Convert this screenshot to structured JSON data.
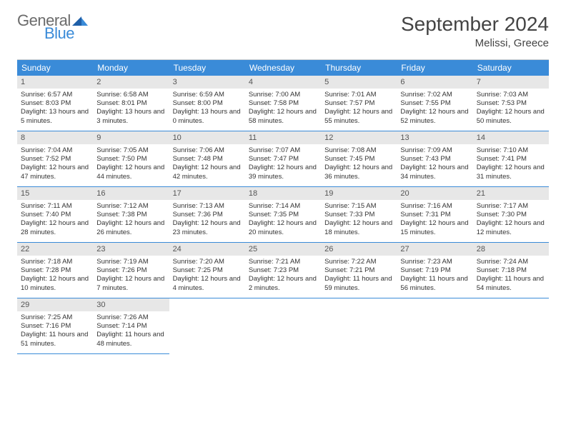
{
  "logo": {
    "general": "General",
    "blue": "Blue"
  },
  "title": "September 2024",
  "subtitle": "Melissi, Greece",
  "colors": {
    "header_bg": "#3a8bd8",
    "header_text": "#ffffff",
    "daynum_bg": "#e7e7e7",
    "border": "#3a8bd8",
    "text": "#333333",
    "logo_gray": "#6b6b6b",
    "logo_blue": "#3a8bd8",
    "background": "#ffffff"
  },
  "typography": {
    "title_fontsize": 28,
    "subtitle_fontsize": 15,
    "dayhead_fontsize": 12,
    "daynum_fontsize": 11,
    "cell_fontsize": 9.5
  },
  "weekdays": [
    "Sunday",
    "Monday",
    "Tuesday",
    "Wednesday",
    "Thursday",
    "Friday",
    "Saturday"
  ],
  "days": [
    {
      "n": "1",
      "sunrise": "6:57 AM",
      "sunset": "8:03 PM",
      "daylight": "13 hours and 5 minutes."
    },
    {
      "n": "2",
      "sunrise": "6:58 AM",
      "sunset": "8:01 PM",
      "daylight": "13 hours and 3 minutes."
    },
    {
      "n": "3",
      "sunrise": "6:59 AM",
      "sunset": "8:00 PM",
      "daylight": "13 hours and 0 minutes."
    },
    {
      "n": "4",
      "sunrise": "7:00 AM",
      "sunset": "7:58 PM",
      "daylight": "12 hours and 58 minutes."
    },
    {
      "n": "5",
      "sunrise": "7:01 AM",
      "sunset": "7:57 PM",
      "daylight": "12 hours and 55 minutes."
    },
    {
      "n": "6",
      "sunrise": "7:02 AM",
      "sunset": "7:55 PM",
      "daylight": "12 hours and 52 minutes."
    },
    {
      "n": "7",
      "sunrise": "7:03 AM",
      "sunset": "7:53 PM",
      "daylight": "12 hours and 50 minutes."
    },
    {
      "n": "8",
      "sunrise": "7:04 AM",
      "sunset": "7:52 PM",
      "daylight": "12 hours and 47 minutes."
    },
    {
      "n": "9",
      "sunrise": "7:05 AM",
      "sunset": "7:50 PM",
      "daylight": "12 hours and 44 minutes."
    },
    {
      "n": "10",
      "sunrise": "7:06 AM",
      "sunset": "7:48 PM",
      "daylight": "12 hours and 42 minutes."
    },
    {
      "n": "11",
      "sunrise": "7:07 AM",
      "sunset": "7:47 PM",
      "daylight": "12 hours and 39 minutes."
    },
    {
      "n": "12",
      "sunrise": "7:08 AM",
      "sunset": "7:45 PM",
      "daylight": "12 hours and 36 minutes."
    },
    {
      "n": "13",
      "sunrise": "7:09 AM",
      "sunset": "7:43 PM",
      "daylight": "12 hours and 34 minutes."
    },
    {
      "n": "14",
      "sunrise": "7:10 AM",
      "sunset": "7:41 PM",
      "daylight": "12 hours and 31 minutes."
    },
    {
      "n": "15",
      "sunrise": "7:11 AM",
      "sunset": "7:40 PM",
      "daylight": "12 hours and 28 minutes."
    },
    {
      "n": "16",
      "sunrise": "7:12 AM",
      "sunset": "7:38 PM",
      "daylight": "12 hours and 26 minutes."
    },
    {
      "n": "17",
      "sunrise": "7:13 AM",
      "sunset": "7:36 PM",
      "daylight": "12 hours and 23 minutes."
    },
    {
      "n": "18",
      "sunrise": "7:14 AM",
      "sunset": "7:35 PM",
      "daylight": "12 hours and 20 minutes."
    },
    {
      "n": "19",
      "sunrise": "7:15 AM",
      "sunset": "7:33 PM",
      "daylight": "12 hours and 18 minutes."
    },
    {
      "n": "20",
      "sunrise": "7:16 AM",
      "sunset": "7:31 PM",
      "daylight": "12 hours and 15 minutes."
    },
    {
      "n": "21",
      "sunrise": "7:17 AM",
      "sunset": "7:30 PM",
      "daylight": "12 hours and 12 minutes."
    },
    {
      "n": "22",
      "sunrise": "7:18 AM",
      "sunset": "7:28 PM",
      "daylight": "12 hours and 10 minutes."
    },
    {
      "n": "23",
      "sunrise": "7:19 AM",
      "sunset": "7:26 PM",
      "daylight": "12 hours and 7 minutes."
    },
    {
      "n": "24",
      "sunrise": "7:20 AM",
      "sunset": "7:25 PM",
      "daylight": "12 hours and 4 minutes."
    },
    {
      "n": "25",
      "sunrise": "7:21 AM",
      "sunset": "7:23 PM",
      "daylight": "12 hours and 2 minutes."
    },
    {
      "n": "26",
      "sunrise": "7:22 AM",
      "sunset": "7:21 PM",
      "daylight": "11 hours and 59 minutes."
    },
    {
      "n": "27",
      "sunrise": "7:23 AM",
      "sunset": "7:19 PM",
      "daylight": "11 hours and 56 minutes."
    },
    {
      "n": "28",
      "sunrise": "7:24 AM",
      "sunset": "7:18 PM",
      "daylight": "11 hours and 54 minutes."
    },
    {
      "n": "29",
      "sunrise": "7:25 AM",
      "sunset": "7:16 PM",
      "daylight": "11 hours and 51 minutes."
    },
    {
      "n": "30",
      "sunrise": "7:26 AM",
      "sunset": "7:14 PM",
      "daylight": "11 hours and 48 minutes."
    }
  ],
  "labels": {
    "sunrise": "Sunrise: ",
    "sunset": "Sunset: ",
    "daylight": "Daylight: "
  }
}
